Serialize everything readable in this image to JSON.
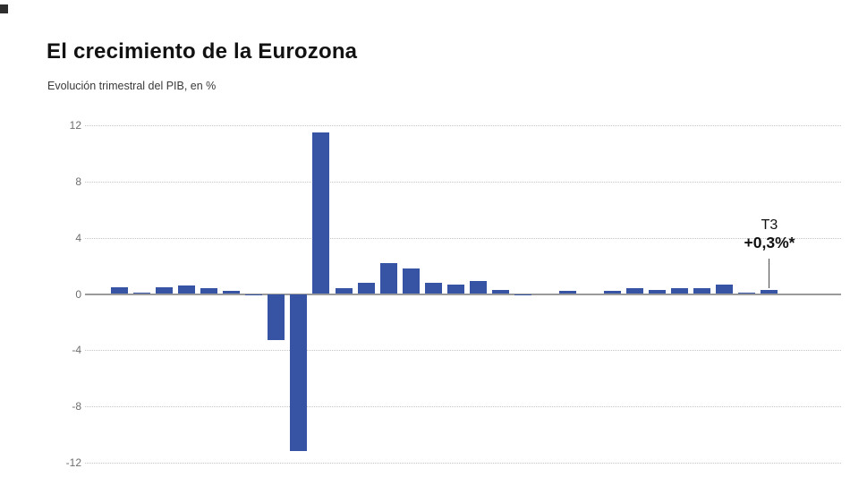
{
  "header": {
    "title": "El crecimiento de la Eurozona",
    "subtitle": "Evolución trimestral del PIB, en %"
  },
  "chart_data": {
    "type": "bar",
    "title": "El crecimiento de la Eurozona",
    "subtitle": "Evolución trimestral del PIB, en %",
    "ylabel": "Evolución trimestral del PIB, en %",
    "xlabel": "",
    "x_axis_labels": "none",
    "ylim": [
      -12,
      12
    ],
    "yticks": [
      12,
      8,
      4,
      0,
      -4,
      -8,
      -12
    ],
    "grid": "horizontal-dotted",
    "legend": "none",
    "bar_color": "#3653A4",
    "values": [
      0.5,
      0.1,
      0.5,
      0.6,
      0.4,
      0.2,
      -0.1,
      -3.3,
      -11.2,
      11.5,
      0.4,
      0.8,
      2.2,
      1.8,
      0.8,
      0.7,
      0.9,
      0.3,
      -0.1,
      0.0,
      0.2,
      0.0,
      0.2,
      0.4,
      0.3,
      0.4,
      0.4,
      0.7,
      0.1,
      0.3
    ],
    "annotation": {
      "quarter": "T3",
      "value": "+0,3%*",
      "applies_to": "last-bar"
    }
  },
  "colors": {
    "background": "#ffffff",
    "bar": "#3653A4",
    "gridline": "#c4c4c4",
    "zero_line": "#9a9a9a",
    "tick_label": "#6e6e6e",
    "title": "#121212",
    "subtitle": "#3a3a3a",
    "annotation_line": "#4a4a4a"
  }
}
